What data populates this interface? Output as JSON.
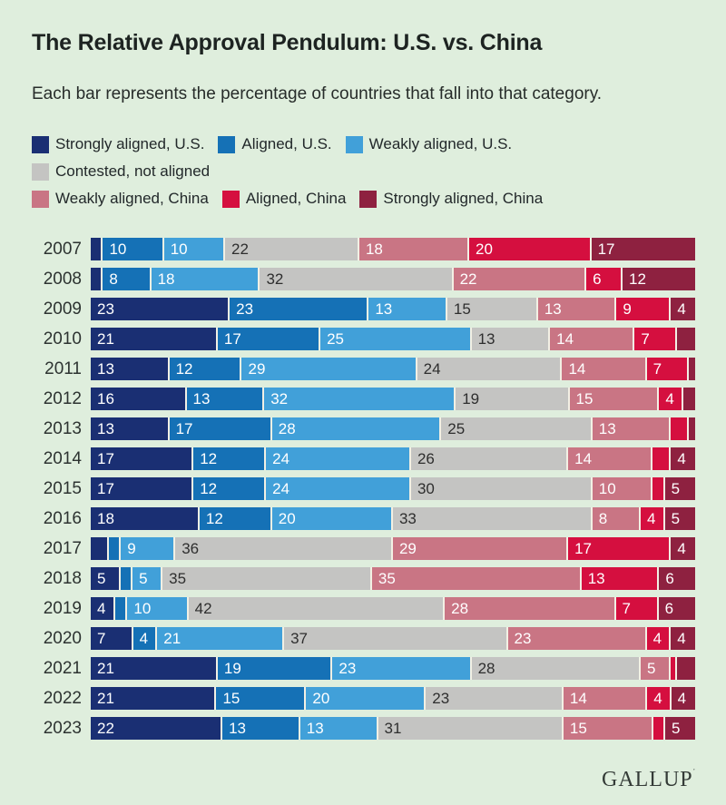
{
  "header": {
    "title": "The Relative Approval Pendulum: U.S. vs. China",
    "subtitle": "Each bar represents the percentage of countries that fall into that category."
  },
  "footer": {
    "logo": "GALLUP",
    "trademark": "’"
  },
  "colors": {
    "background": "#dfeedd",
    "segment_separator": "#f2f0e4",
    "title_text": "#1d2321",
    "year_text": "#2d3331"
  },
  "legend": {
    "rows": [
      [
        0,
        1,
        2
      ],
      [
        3
      ],
      [
        4,
        5,
        6
      ]
    ]
  },
  "chart_data": {
    "type": "bar",
    "stacked": true,
    "orientation": "horizontal",
    "title": "The Relative Approval Pendulum: U.S. vs. China",
    "subtitle": "Each bar represents the percentage of countries that fall into that category.",
    "unit": "percent of countries",
    "label_min": 4,
    "grid": false,
    "legend_position": "top",
    "categories": [
      "2007",
      "2008",
      "2009",
      "2010",
      "2011",
      "2012",
      "2013",
      "2014",
      "2015",
      "2016",
      "2017",
      "2018",
      "2019",
      "2020",
      "2021",
      "2022",
      "2023"
    ],
    "series": [
      {
        "name": "Strongly aligned, U.S.",
        "color": "#1a2f73",
        "text_color": "#ffffff",
        "values": [
          2,
          2,
          23,
          21,
          13,
          16,
          13,
          17,
          17,
          18,
          3,
          5,
          4,
          7,
          21,
          21,
          22
        ]
      },
      {
        "name": "Aligned, U.S.",
        "color": "#1571b6",
        "text_color": "#ffffff",
        "values": [
          10,
          8,
          23,
          17,
          12,
          13,
          17,
          12,
          12,
          12,
          2,
          2,
          2,
          4,
          19,
          15,
          13
        ]
      },
      {
        "name": "Weakly aligned, U.S.",
        "color": "#41a0d9",
        "text_color": "#ffffff",
        "values": [
          10,
          18,
          13,
          25,
          29,
          32,
          28,
          24,
          24,
          20,
          9,
          5,
          10,
          21,
          23,
          20,
          13
        ]
      },
      {
        "name": "Contested, not aligned",
        "color": "#c4c4c2",
        "text_color": "#2e2e2e",
        "values": [
          22,
          32,
          15,
          13,
          24,
          19,
          25,
          26,
          30,
          33,
          36,
          35,
          42,
          37,
          28,
          23,
          31
        ]
      },
      {
        "name": "Weakly aligned, China",
        "color": "#c97584",
        "text_color": "#ffffff",
        "values": [
          18,
          22,
          13,
          14,
          14,
          15,
          13,
          14,
          10,
          8,
          29,
          35,
          28,
          23,
          5,
          14,
          15
        ]
      },
      {
        "name": "Aligned, China",
        "color": "#d50f3f",
        "text_color": "#ffffff",
        "values": [
          20,
          6,
          9,
          7,
          7,
          4,
          3,
          3,
          2,
          4,
          17,
          13,
          7,
          4,
          1,
          4,
          2
        ]
      },
      {
        "name": "Strongly aligned, China",
        "color": "#8e2140",
        "text_color": "#ffffff",
        "values": [
          17,
          12,
          4,
          3,
          1,
          2,
          1,
          4,
          5,
          5,
          4,
          6,
          6,
          4,
          3,
          4,
          5
        ]
      }
    ]
  }
}
